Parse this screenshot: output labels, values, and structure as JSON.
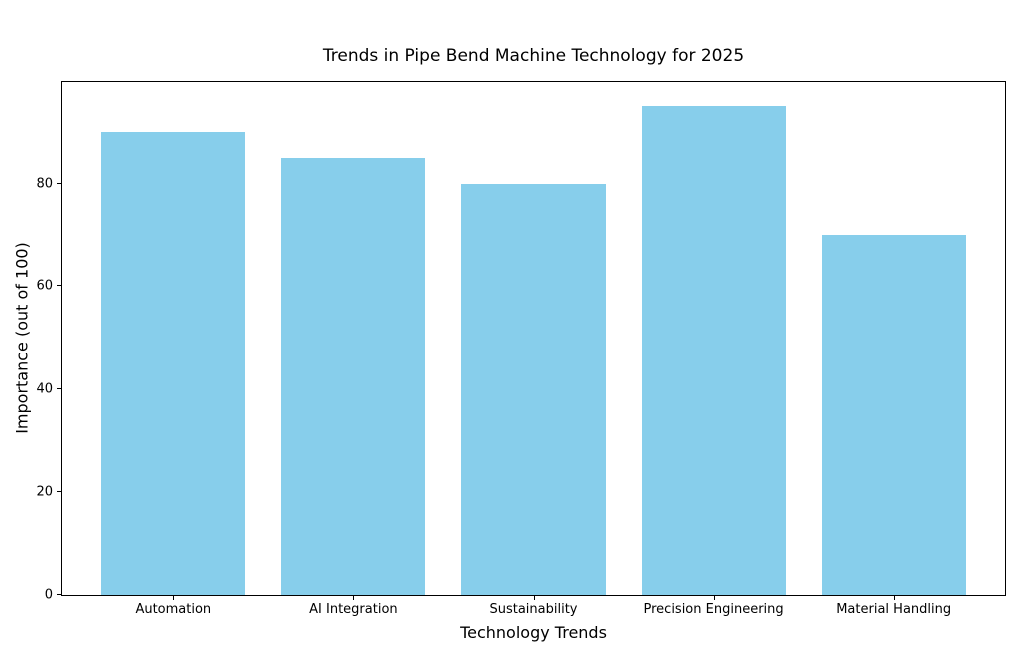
{
  "chart_data": {
    "type": "bar",
    "title": "Trends in Pipe Bend Machine Technology for 2025",
    "xlabel": "Technology Trends",
    "ylabel": "Importance (out of 100)",
    "categories": [
      "Automation",
      "AI Integration",
      "Sustainability",
      "Precision Engineering",
      "Material Handling"
    ],
    "values": [
      90,
      85,
      80,
      95,
      70
    ],
    "ylim": [
      0,
      99.75
    ],
    "yticks": [
      0,
      20,
      40,
      60,
      80
    ],
    "bar_color": "#87CEEB",
    "grid": false,
    "legend": "none",
    "bar_width_fraction": 0.8
  }
}
